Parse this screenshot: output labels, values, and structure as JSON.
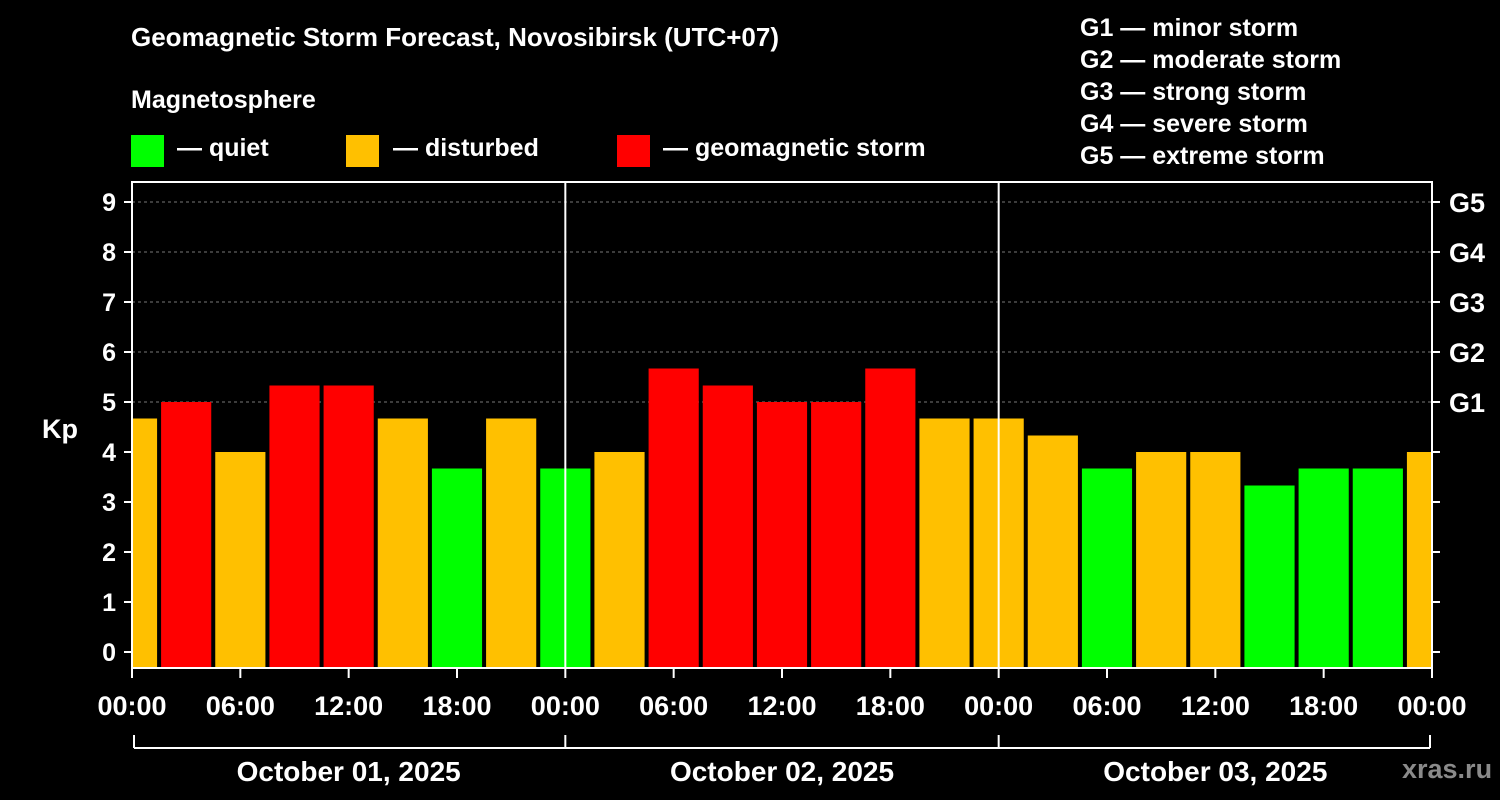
{
  "title": "Geomagnetic Storm Forecast, Novosibirsk (UTC+07)",
  "subtitle": "Magnetosphere",
  "legend": [
    {
      "label": "— quiet",
      "color": "#00ff00"
    },
    {
      "label": "— disturbed",
      "color": "#ffc000"
    },
    {
      "label": "— geomagnetic storm",
      "color": "#ff0000"
    }
  ],
  "g_scale": [
    "G1 — minor storm",
    "G2 — moderate storm",
    "G3 — strong storm",
    "G4 — severe storm",
    "G5 — extreme storm"
  ],
  "watermark": "xras.ru",
  "chart_data": {
    "type": "bar",
    "ylabel": "Kp",
    "ylim": [
      0,
      9
    ],
    "xlim_hours": [
      0,
      72
    ],
    "y_ticks": [
      "0",
      "1",
      "2",
      "3",
      "4",
      "5",
      "6",
      "7",
      "8",
      "9"
    ],
    "right_ticks": [
      {
        "kp": 5,
        "label": "G1"
      },
      {
        "kp": 6,
        "label": "G2"
      },
      {
        "kp": 7,
        "label": "G3"
      },
      {
        "kp": 8,
        "label": "G4"
      },
      {
        "kp": 9,
        "label": "G5"
      }
    ],
    "x_tick_labels": [
      "00:00",
      "06:00",
      "12:00",
      "18:00",
      "00:00",
      "06:00",
      "12:00",
      "18:00",
      "00:00",
      "06:00",
      "12:00",
      "18:00",
      "00:00"
    ],
    "day_labels": [
      "October 01, 2025",
      "October 02, 2025",
      "October 03, 2025"
    ],
    "colors": {
      "quiet": "#00ff00",
      "disturbed": "#ffc000",
      "storm": "#ff0000"
    },
    "bars": [
      {
        "start_hour": -1.5,
        "kp": 4.67,
        "level": "disturbed"
      },
      {
        "start_hour": 1.5,
        "kp": 5.0,
        "level": "storm"
      },
      {
        "start_hour": 4.5,
        "kp": 4.0,
        "level": "disturbed"
      },
      {
        "start_hour": 7.5,
        "kp": 5.33,
        "level": "storm"
      },
      {
        "start_hour": 10.5,
        "kp": 5.33,
        "level": "storm"
      },
      {
        "start_hour": 13.5,
        "kp": 4.67,
        "level": "disturbed"
      },
      {
        "start_hour": 16.5,
        "kp": 3.67,
        "level": "quiet"
      },
      {
        "start_hour": 19.5,
        "kp": 4.67,
        "level": "disturbed"
      },
      {
        "start_hour": 22.5,
        "kp": 3.67,
        "level": "quiet"
      },
      {
        "start_hour": 25.5,
        "kp": 4.0,
        "level": "disturbed"
      },
      {
        "start_hour": 28.5,
        "kp": 5.67,
        "level": "storm"
      },
      {
        "start_hour": 31.5,
        "kp": 5.33,
        "level": "storm"
      },
      {
        "start_hour": 34.5,
        "kp": 5.0,
        "level": "storm"
      },
      {
        "start_hour": 37.5,
        "kp": 5.0,
        "level": "storm"
      },
      {
        "start_hour": 40.5,
        "kp": 5.67,
        "level": "storm"
      },
      {
        "start_hour": 43.5,
        "kp": 4.67,
        "level": "disturbed"
      },
      {
        "start_hour": 46.5,
        "kp": 4.67,
        "level": "disturbed"
      },
      {
        "start_hour": 49.5,
        "kp": 4.33,
        "level": "disturbed"
      },
      {
        "start_hour": 52.5,
        "kp": 3.67,
        "level": "quiet"
      },
      {
        "start_hour": 55.5,
        "kp": 4.0,
        "level": "disturbed"
      },
      {
        "start_hour": 58.5,
        "kp": 4.0,
        "level": "disturbed"
      },
      {
        "start_hour": 61.5,
        "kp": 3.33,
        "level": "quiet"
      },
      {
        "start_hour": 64.5,
        "kp": 3.67,
        "level": "quiet"
      },
      {
        "start_hour": 67.5,
        "kp": 3.67,
        "level": "quiet"
      },
      {
        "start_hour": 70.5,
        "kp": 4.0,
        "level": "disturbed"
      }
    ]
  }
}
